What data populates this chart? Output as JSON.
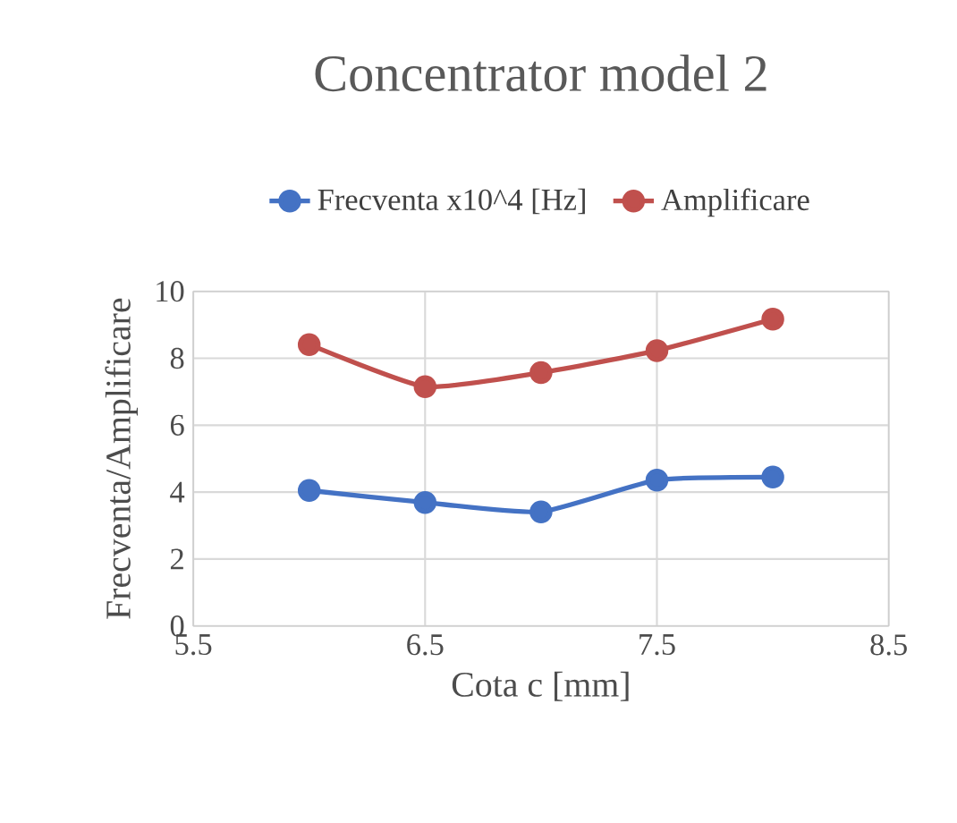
{
  "chart_data": {
    "type": "line",
    "title": "Concentrator model 2",
    "xlabel": "Cota c [mm]",
    "ylabel": "Frecventa/Amplificare",
    "x": [
      6,
      6.5,
      7,
      7.5,
      8
    ],
    "series": [
      {
        "name": "Frecventa  x10^4 [Hz]",
        "color": "#4472c4",
        "values": [
          4.05,
          3.69,
          3.41,
          4.36,
          4.45
        ]
      },
      {
        "name": "Amplificare",
        "color": "#c0504d",
        "values": [
          8.41,
          7.15,
          7.57,
          8.23,
          9.17
        ]
      }
    ],
    "xlim": [
      5.5,
      8.5
    ],
    "xticks": [
      5.5,
      6.5,
      7.5,
      8.5
    ],
    "ylim": [
      0,
      10
    ],
    "yticks": [
      0,
      2,
      4,
      6,
      8,
      10
    ],
    "grid": true,
    "legend": "top",
    "marker": "circle",
    "line_style": "solid"
  }
}
